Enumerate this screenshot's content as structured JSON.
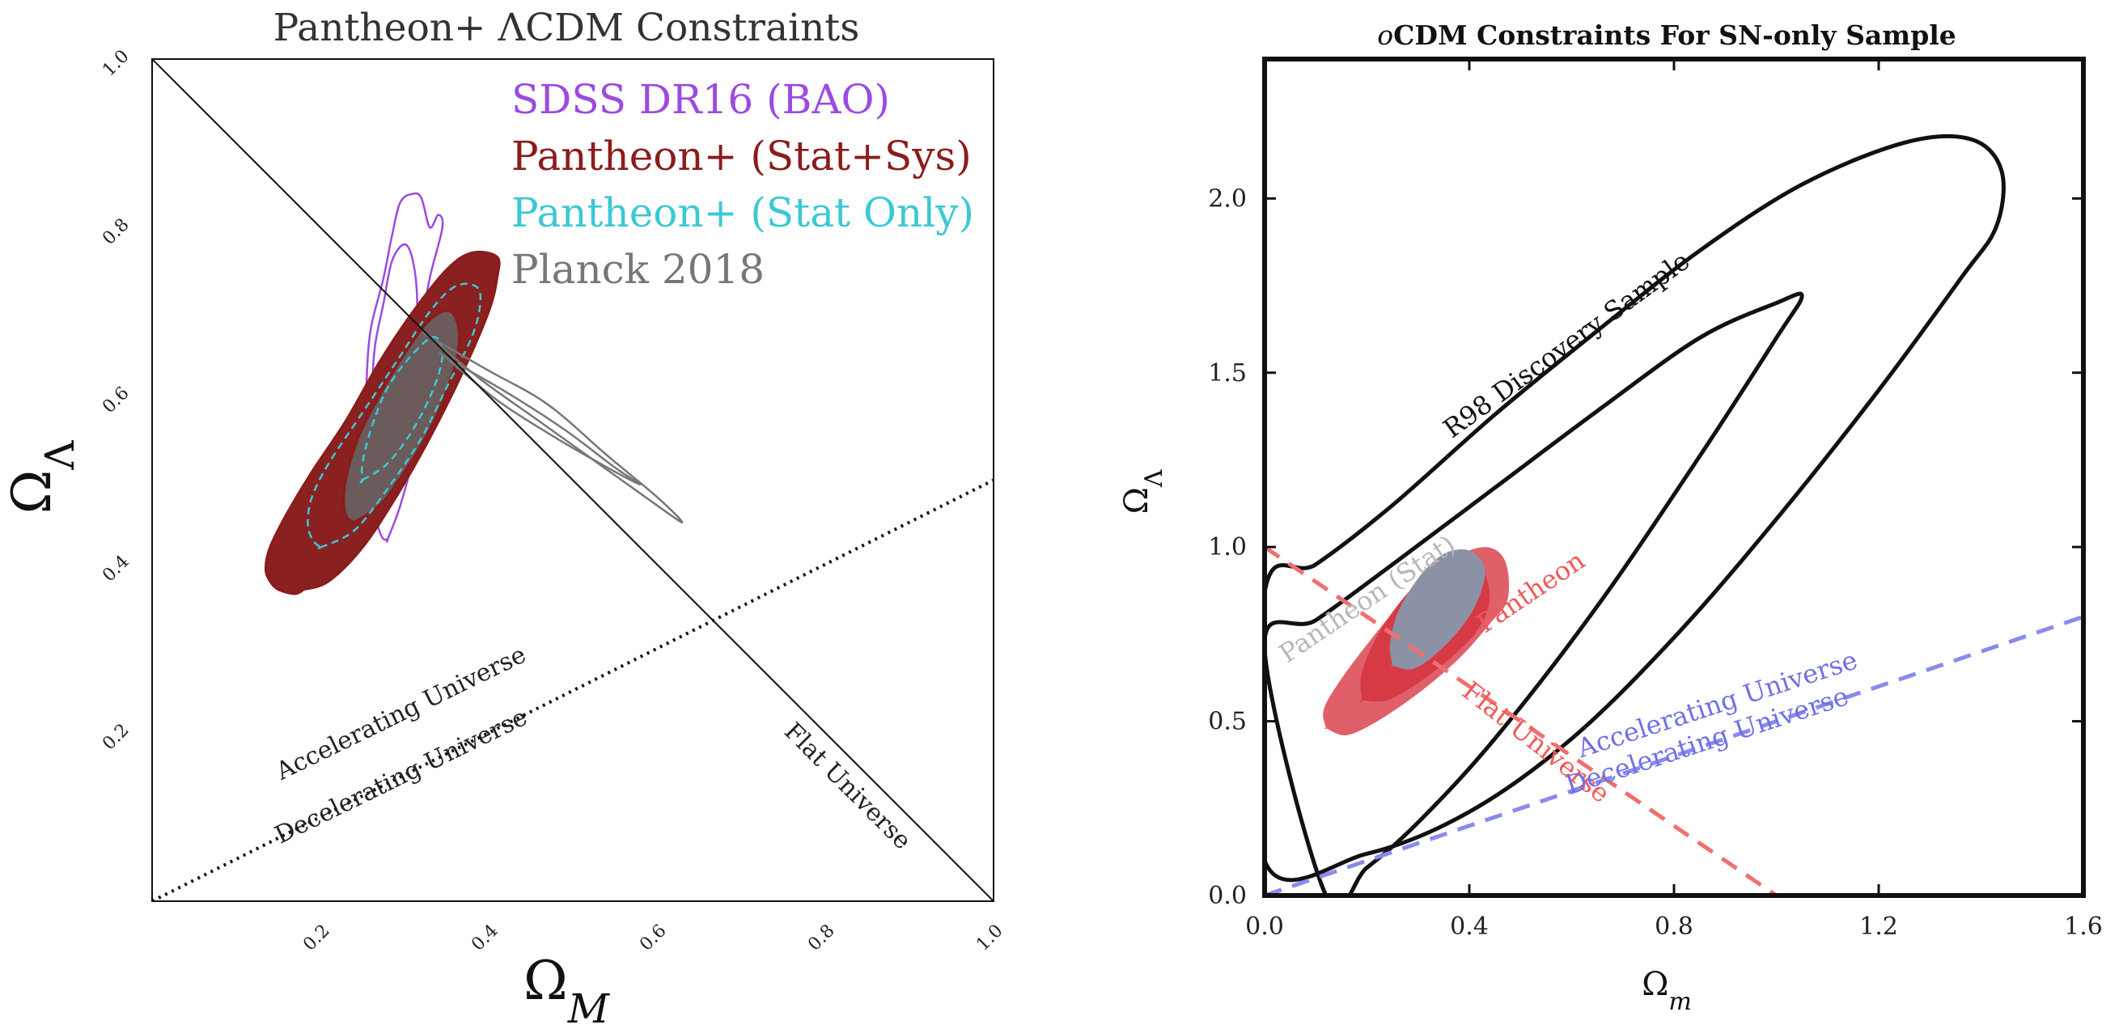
{
  "chart_data": [
    {
      "type": "contour",
      "title": "Pantheon+ ΛCDM Constraints",
      "xlabel": "Ω",
      "xlabel_sub": "M",
      "ylabel": "Ω",
      "ylabel_sub": "Λ",
      "xlim": [
        0.0,
        1.0
      ],
      "ylim": [
        0.0,
        1.0
      ],
      "xticks": [
        0.2,
        0.4,
        0.6,
        0.8,
        1.0
      ],
      "xtick_labels": [
        "0.2",
        "0.4",
        "0.6",
        "0.8",
        "1.0"
      ],
      "yticks": [
        0.2,
        0.4,
        0.6,
        0.8,
        1.0
      ],
      "ytick_labels": [
        "0.2",
        "0.4",
        "0.6",
        "0.8",
        "1.0"
      ],
      "grid": false,
      "legend_position": "top-right",
      "series": [
        {
          "name": "SDSS DR16 (BAO)",
          "color": "#9b4be0",
          "style": "outline",
          "contours": [
            {
              "level": "outer",
              "x": [
                0.28,
                0.295,
                0.31,
                0.315,
                0.32,
                0.33,
                0.345,
                0.34,
                0.33,
                0.32,
                0.31,
                0.295,
                0.285,
                0.275,
                0.26,
                0.255,
                0.255,
                0.26,
                0.265,
                0.27,
                0.275,
                0.28
              ],
              "y": [
                0.43,
                0.47,
                0.53,
                0.6,
                0.68,
                0.74,
                0.8,
                0.815,
                0.8,
                0.835,
                0.84,
                0.83,
                0.79,
                0.74,
                0.68,
                0.62,
                0.56,
                0.5,
                0.46,
                0.44,
                0.43,
                0.43
              ]
            },
            {
              "level": "inner",
              "x": [
                0.27,
                0.285,
                0.3,
                0.31,
                0.315,
                0.31,
                0.3,
                0.285,
                0.275,
                0.265,
                0.262,
                0.265,
                0.27
              ],
              "y": [
                0.54,
                0.55,
                0.58,
                0.64,
                0.71,
                0.76,
                0.78,
                0.76,
                0.71,
                0.66,
                0.61,
                0.57,
                0.54
              ]
            }
          ]
        },
        {
          "name": "Pantheon+ (Stat+Sys)",
          "color": "#8b1c1c",
          "fill_outer": "#8a2020",
          "fill_inner": "#6b5b5b",
          "style": "filled",
          "contours": [
            {
              "level": "outer",
              "x": [
                0.18,
                0.21,
                0.25,
                0.29,
                0.33,
                0.37,
                0.4,
                0.41,
                0.41,
                0.38,
                0.35,
                0.31,
                0.27,
                0.23,
                0.19,
                0.16,
                0.14,
                0.135,
                0.14,
                0.15,
                0.17,
                0.18
              ],
              "y": [
                0.37,
                0.38,
                0.42,
                0.48,
                0.55,
                0.63,
                0.7,
                0.74,
                0.765,
                0.77,
                0.75,
                0.7,
                0.64,
                0.57,
                0.51,
                0.46,
                0.42,
                0.395,
                0.38,
                0.37,
                0.365,
                0.37
              ]
            },
            {
              "level": "inner",
              "x": [
                0.24,
                0.27,
                0.3,
                0.33,
                0.355,
                0.365,
                0.355,
                0.33,
                0.3,
                0.27,
                0.245,
                0.23,
                0.228,
                0.232,
                0.24
              ],
              "y": [
                0.45,
                0.47,
                0.51,
                0.56,
                0.62,
                0.67,
                0.7,
                0.69,
                0.65,
                0.6,
                0.55,
                0.5,
                0.47,
                0.455,
                0.45
              ]
            }
          ]
        },
        {
          "name": "Pantheon+ (Stat Only)",
          "color": "#3cc8d4",
          "style": "dashed",
          "contours": [
            {
              "level": "outer",
              "x": [
                0.2,
                0.24,
                0.28,
                0.32,
                0.35,
                0.38,
                0.39,
                0.385,
                0.36,
                0.33,
                0.29,
                0.25,
                0.21,
                0.19,
                0.185,
                0.19,
                0.2
              ],
              "y": [
                0.42,
                0.44,
                0.49,
                0.55,
                0.61,
                0.67,
                0.71,
                0.73,
                0.73,
                0.7,
                0.64,
                0.58,
                0.52,
                0.48,
                0.45,
                0.43,
                0.42
              ]
            },
            {
              "level": "inner",
              "x": [
                0.25,
                0.28,
                0.31,
                0.335,
                0.345,
                0.335,
                0.31,
                0.28,
                0.26,
                0.25,
                0.25
              ],
              "y": [
                0.5,
                0.52,
                0.56,
                0.61,
                0.65,
                0.67,
                0.65,
                0.61,
                0.56,
                0.52,
                0.5
              ]
            }
          ]
        },
        {
          "name": "Planck 2018",
          "color": "#777777",
          "style": "outline",
          "contours": [
            {
              "level": "outer",
              "x": [
                0.33,
                0.4,
                0.47,
                0.54,
                0.6,
                0.63,
                0.6,
                0.53,
                0.46,
                0.39,
                0.33
              ],
              "y": [
                0.67,
                0.63,
                0.59,
                0.53,
                0.48,
                0.45,
                0.47,
                0.52,
                0.57,
                0.62,
                0.67
              ]
            },
            {
              "level": "inner",
              "x": [
                0.35,
                0.42,
                0.49,
                0.55,
                0.58,
                0.55,
                0.48,
                0.41,
                0.35
              ],
              "y": [
                0.645,
                0.605,
                0.56,
                0.515,
                0.495,
                0.51,
                0.55,
                0.595,
                0.645
              ]
            }
          ]
        }
      ],
      "lines": [
        {
          "name": "Flat Universe",
          "x": [
            0.0,
            1.0
          ],
          "y": [
            1.0,
            0.0
          ],
          "style": "solid",
          "color": "#111111"
        },
        {
          "name": "Accelerating / Decelerating",
          "x": [
            0.0,
            1.0
          ],
          "y": [
            0.0,
            0.5
          ],
          "style": "dotted",
          "color": "#111111"
        }
      ],
      "annotations": [
        {
          "text": "Accelerating Universe",
          "x": 0.3,
          "y": 0.215,
          "rotation": -26
        },
        {
          "text": "Decelerating Universe",
          "x": 0.3,
          "y": 0.14,
          "rotation": -26
        },
        {
          "text": "Flat Universe",
          "x": 0.82,
          "y": 0.13,
          "rotation": 45
        }
      ]
    },
    {
      "type": "contour",
      "title": "CDM Constraints For SN-only Sample",
      "title_prefix": "o",
      "xlabel": "Ω",
      "xlabel_sub": "m",
      "ylabel": "Ω",
      "ylabel_sub": "Λ",
      "xlim": [
        0.0,
        1.6
      ],
      "ylim": [
        0.0,
        2.4
      ],
      "xticks": [
        0.0,
        0.4,
        0.8,
        1.2,
        1.6
      ],
      "xtick_labels": [
        "0.0",
        "0.4",
        "0.8",
        "1.2",
        "1.6"
      ],
      "yticks": [
        0.0,
        0.5,
        1.0,
        1.5,
        2.0
      ],
      "ytick_labels": [
        "0.0",
        "0.5",
        "1.0",
        "1.5",
        "2.0"
      ],
      "grid": false,
      "series": [
        {
          "name": "R98 Discovery Sample",
          "color": "#111111",
          "style": "outline",
          "contours": [
            {
              "level": "outer",
              "x": [
                0.0,
                0.1,
                0.25,
                0.45,
                0.65,
                0.85,
                1.05,
                1.25,
                1.38,
                1.44,
                1.43,
                1.36,
                1.2,
                1.0,
                0.8,
                0.6,
                0.4,
                0.2,
                0.0
              ],
              "y": [
                0.87,
                0.95,
                1.12,
                1.38,
                1.62,
                1.85,
                2.04,
                2.16,
                2.17,
                2.08,
                1.92,
                1.77,
                1.45,
                1.08,
                0.74,
                0.45,
                0.24,
                0.12,
                0.1
              ]
            },
            {
              "level": "inner",
              "x": [
                0.0,
                0.1,
                0.25,
                0.45,
                0.65,
                0.85,
                1.0,
                1.05,
                1.0,
                0.85,
                0.65,
                0.45,
                0.3,
                0.2,
                0.12
              ],
              "y": [
                0.71,
                0.79,
                0.95,
                1.17,
                1.39,
                1.6,
                1.7,
                1.72,
                1.6,
                1.26,
                0.83,
                0.45,
                0.21,
                0.08,
                0.0
              ]
            }
          ]
        },
        {
          "name": "Pantheon",
          "color": "#e36060",
          "fill_outer": "#e0606a",
          "fill_inner": "#d73a45",
          "style": "filled",
          "contours": [
            {
              "level": "outer",
              "x": [
                0.12,
                0.16,
                0.22,
                0.3,
                0.38,
                0.44,
                0.475,
                0.47,
                0.43,
                0.36,
                0.28,
                0.2,
                0.14,
                0.115,
                0.12
              ],
              "y": [
                0.48,
                0.46,
                0.5,
                0.58,
                0.68,
                0.78,
                0.85,
                0.96,
                1.0,
                0.96,
                0.86,
                0.72,
                0.6,
                0.53,
                0.48
              ]
            },
            {
              "level": "inner",
              "x": [
                0.19,
                0.24,
                0.3,
                0.37,
                0.42,
                0.44,
                0.42,
                0.37,
                0.3,
                0.23,
                0.19,
                0.19
              ],
              "y": [
                0.56,
                0.56,
                0.61,
                0.69,
                0.77,
                0.86,
                0.95,
                0.97,
                0.9,
                0.77,
                0.64,
                0.56
              ]
            }
          ]
        },
        {
          "name": "Pantheon (Stat)",
          "color": "#aaaaaa",
          "fill_outer": "#8c92a6",
          "fill_inner": "#7d8299",
          "style": "filled",
          "contours": [
            {
              "level": "outer",
              "x": [
                0.25,
                0.29,
                0.34,
                0.39,
                0.42,
                0.43,
                0.4,
                0.35,
                0.3,
                0.26,
                0.245,
                0.25
              ],
              "y": [
                0.66,
                0.65,
                0.7,
                0.78,
                0.86,
                0.94,
                0.99,
                0.98,
                0.91,
                0.81,
                0.72,
                0.66
              ]
            }
          ]
        }
      ],
      "lines": [
        {
          "name": "Flat Universe",
          "x": [
            0.0,
            1.0
          ],
          "y": [
            1.0,
            0.0
          ],
          "style": "dashed",
          "color": "#f07070"
        },
        {
          "name": "Accelerating / Decelerating",
          "x": [
            0.0,
            1.6
          ],
          "y": [
            0.0,
            0.8
          ],
          "style": "dashed",
          "color": "#8a8aee"
        }
      ],
      "annotations": [
        {
          "text": "R98 Discovery Sample",
          "x": 0.6,
          "y": 1.56,
          "rotation": -36,
          "color": "#111111"
        },
        {
          "text": "Pantheon (Stat)",
          "x": 0.21,
          "y": 0.83,
          "rotation": -34,
          "color": "#b8b8b8"
        },
        {
          "text": "Pantheon",
          "x": 0.53,
          "y": 0.85,
          "rotation": -34,
          "color": "#f05a5a"
        },
        {
          "text": "Flat Universe",
          "x": 0.52,
          "y": 0.42,
          "rotation": 38,
          "color": "#f05a5a"
        },
        {
          "text": "Accelerating Universe",
          "x": 0.89,
          "y": 0.525,
          "rotation": -18,
          "color": "#7070e6"
        },
        {
          "text": "Decelerating Universe",
          "x": 0.87,
          "y": 0.42,
          "rotation": -18,
          "color": "#7070e6"
        }
      ]
    }
  ]
}
